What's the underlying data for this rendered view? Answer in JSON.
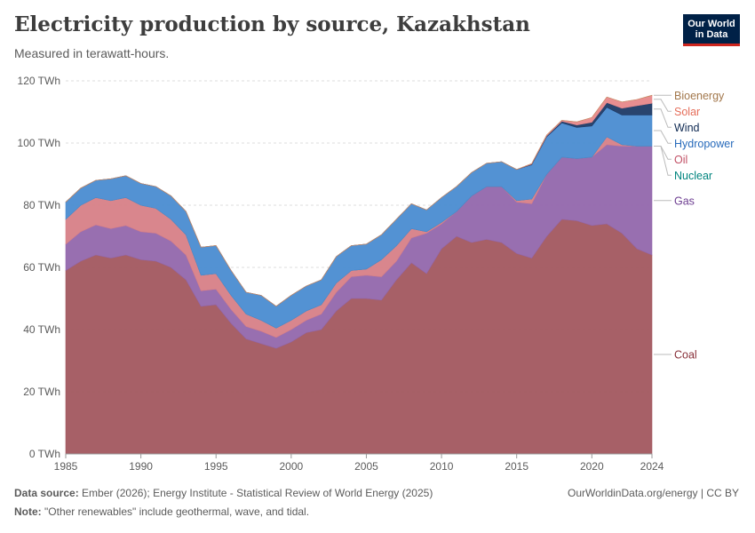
{
  "header": {
    "title": "Electricity production by source, Kazakhstan",
    "subtitle": "Measured in terawatt-hours."
  },
  "logo": {
    "line1": "Our World",
    "line2": "in Data"
  },
  "footer": {
    "source_label": "Data source:",
    "source_text": "Ember (2026); Energy Institute - Statistical Review of World Energy (2025)",
    "note_label": "Note:",
    "note_text": "\"Other renewables\" include geothermal, wave, and tidal.",
    "credit": "OurWorldinData.org/energy | CC BY"
  },
  "chart_data": {
    "type": "area",
    "stacked": true,
    "title": "Electricity production by source, Kazakhstan",
    "subtitle": "Measured in terawatt-hours.",
    "xlabel": "",
    "ylabel": "",
    "unit": "TWh",
    "xlim": [
      1985,
      2024
    ],
    "ylim": [
      0,
      120
    ],
    "yticks": [
      0,
      20,
      40,
      60,
      80,
      100,
      120
    ],
    "ytick_labels": [
      "0 TWh",
      "20 TWh",
      "40 TWh",
      "60 TWh",
      "80 TWh",
      "100 TWh",
      "120 TWh"
    ],
    "xticks": [
      1985,
      1990,
      1995,
      2000,
      2005,
      2010,
      2015,
      2020,
      2024
    ],
    "xtick_labels": [
      "1985",
      "1990",
      "1995",
      "2000",
      "2005",
      "2010",
      "2015",
      "2020",
      "2024"
    ],
    "grid": true,
    "legend_position": "right",
    "x": [
      1985,
      1986,
      1987,
      1988,
      1989,
      1990,
      1991,
      1992,
      1993,
      1994,
      1995,
      1996,
      1997,
      1998,
      1999,
      2000,
      2001,
      2002,
      2003,
      2004,
      2005,
      2006,
      2007,
      2008,
      2009,
      2010,
      2011,
      2012,
      2013,
      2014,
      2015,
      2016,
      2017,
      2018,
      2019,
      2020,
      2021,
      2022,
      2023,
      2024
    ],
    "series": [
      {
        "name": "Coal",
        "color": "#a2575f",
        "label_color": "#883039",
        "values": [
          59,
          62,
          64,
          63,
          64,
          62.5,
          62,
          60,
          56,
          47.5,
          48,
          42,
          37,
          35.5,
          34,
          36,
          39,
          40,
          46,
          50,
          50,
          49.5,
          56,
          61.5,
          58,
          66,
          70,
          68,
          69,
          68,
          64.5,
          63,
          70,
          75.5,
          75,
          73.5,
          74,
          71,
          66,
          64
        ]
      },
      {
        "name": "Gas",
        "color": "#9267ac",
        "label_color": "#6d3e91",
        "values": [
          8.5,
          9.5,
          9.7,
          9.5,
          9.5,
          9,
          9,
          8.5,
          8,
          5,
          5,
          4.5,
          4,
          4,
          3.5,
          4,
          4,
          5,
          6,
          7,
          7.5,
          7.5,
          6,
          8,
          13,
          8,
          8,
          15,
          17,
          18,
          16.5,
          17.5,
          20,
          20,
          20,
          22,
          25.5,
          28,
          33,
          35
        ]
      },
      {
        "name": "Oil",
        "color": "#d77f87",
        "label_color": "#c15065",
        "values": [
          8,
          8.5,
          8.8,
          9,
          9,
          8.5,
          8,
          7,
          6.5,
          5,
          5,
          4.5,
          4,
          3.5,
          3,
          3,
          3,
          3,
          3,
          2,
          2,
          5.5,
          5,
          3,
          0.5,
          0.5,
          0,
          0,
          0,
          0,
          0.5,
          1.5,
          0,
          0,
          0,
          0,
          2.5,
          0.5,
          0,
          0
        ]
      },
      {
        "name": "Nuclear",
        "color": "#3b7f8d",
        "label_color": "#00847e",
        "values": [
          0,
          0,
          0,
          0,
          0,
          0,
          0,
          0,
          0,
          0,
          0,
          0,
          0,
          0,
          0,
          0,
          0,
          0,
          0,
          0,
          0,
          0,
          0,
          0,
          0,
          0,
          0,
          0,
          0,
          0,
          0,
          0,
          0,
          0,
          0,
          0,
          0,
          0,
          0,
          0
        ]
      },
      {
        "name": "Hydropower",
        "color": "#4a8cd1",
        "label_color": "#286bbb",
        "values": [
          5.5,
          5.5,
          5.5,
          7,
          7,
          7,
          7,
          7.5,
          7.5,
          9,
          9,
          8,
          7,
          8,
          7,
          8,
          8,
          8,
          8.5,
          8,
          8,
          8,
          8.5,
          8,
          7,
          8,
          8,
          7.5,
          7.5,
          8,
          10,
          11,
          12,
          11,
          10,
          10,
          9.5,
          9.5,
          10,
          10
        ]
      },
      {
        "name": "Wind",
        "color": "#1e3a66",
        "label_color": "#0f2a52",
        "values": [
          0,
          0,
          0,
          0,
          0,
          0,
          0,
          0,
          0,
          0,
          0,
          0,
          0,
          0,
          0,
          0,
          0,
          0,
          0,
          0,
          0,
          0,
          0,
          0,
          0,
          0,
          0,
          0,
          0,
          0,
          0,
          0.2,
          0.3,
          0.5,
          0.8,
          1.2,
          1.5,
          2.2,
          3,
          3.8
        ]
      },
      {
        "name": "Solar",
        "color": "#e7888a",
        "label_color": "#e56e5a",
        "values": [
          0,
          0,
          0,
          0,
          0,
          0,
          0,
          0,
          0,
          0,
          0,
          0,
          0,
          0,
          0,
          0,
          0,
          0,
          0,
          0,
          0,
          0,
          0,
          0,
          0,
          0,
          0,
          0,
          0,
          0,
          0,
          0.2,
          0.3,
          0.3,
          1,
          1.5,
          1.8,
          2,
          2,
          2.5
        ]
      },
      {
        "name": "Bioenergy",
        "color": "#c28e61",
        "label_color": "#a2774b",
        "values": [
          0,
          0,
          0,
          0,
          0,
          0,
          0,
          0,
          0,
          0,
          0,
          0,
          0,
          0,
          0,
          0,
          0,
          0,
          0,
          0,
          0,
          0,
          0,
          0,
          0,
          0,
          0,
          0,
          0,
          0,
          0,
          0,
          0,
          0,
          0,
          0,
          0,
          0,
          0,
          0.1
        ]
      }
    ]
  }
}
